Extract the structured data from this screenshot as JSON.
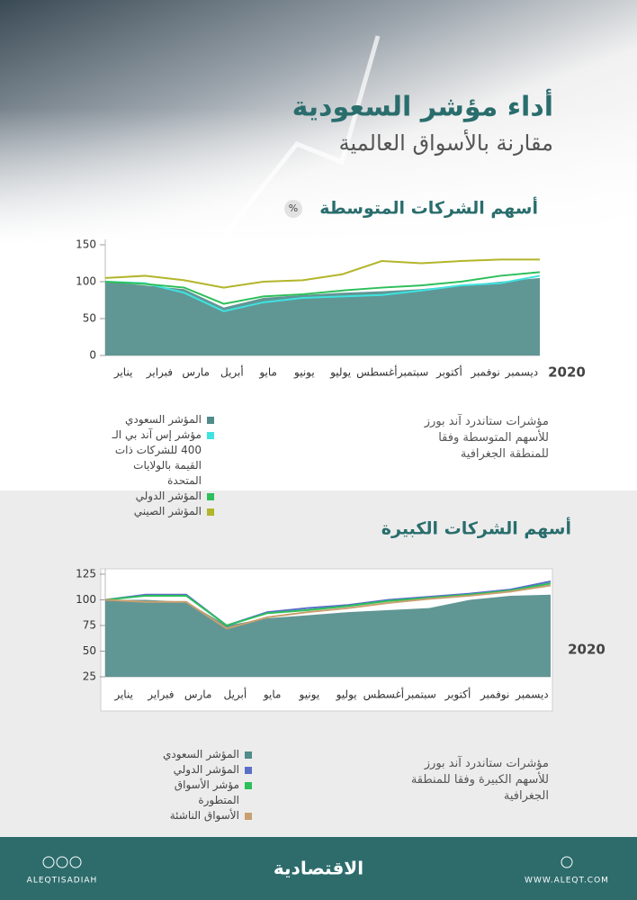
{
  "header": {
    "title": "أداء مؤشر السعودية",
    "subtitle": "مقارنة بالأسواق العالمية"
  },
  "chart_data": [
    {
      "type": "line",
      "title": "أسهم الشركات المتوسطة",
      "unit": "%",
      "year_label": "2020",
      "categories": [
        "يناير",
        "فبراير",
        "مارس",
        "أبريل",
        "مايو",
        "يونيو",
        "يوليو",
        "أغسطس",
        "سبتمبر",
        "أكتوبر",
        "نوفمبر",
        "ديسمبر"
      ],
      "ylim": [
        0,
        150
      ],
      "yticks": [
        0,
        50,
        100,
        150
      ],
      "series": [
        {
          "name": "المؤشر السعودي",
          "color": "#4f8c8a",
          "style": "area",
          "values": [
            100,
            95,
            90,
            65,
            78,
            82,
            85,
            87,
            90,
            95,
            100,
            105
          ]
        },
        {
          "name": "مؤشر إس آند بي الـ 400 للشركات ذات القيمة بالولايات المتحدة",
          "color": "#3fe3e0",
          "style": "line",
          "values": [
            100,
            98,
            85,
            60,
            72,
            78,
            80,
            82,
            88,
            95,
            98,
            108
          ]
        },
        {
          "name": "المؤشر الدولي",
          "color": "#2dbf5a",
          "style": "line",
          "values": [
            100,
            97,
            92,
            70,
            80,
            83,
            88,
            92,
            95,
            100,
            108,
            113
          ]
        },
        {
          "name": "المؤشر الصيني",
          "color": "#b3b52a",
          "style": "line",
          "values": [
            105,
            108,
            102,
            92,
            100,
            102,
            110,
            128,
            125,
            128,
            130,
            130
          ]
        }
      ],
      "caption": "مؤشرات ستاندرد آند بورز للأسهم المتوسطة وفقا للمنطقة الجغرافية"
    },
    {
      "type": "line",
      "title": "أسهم الشركات الكبيرة",
      "year_label": "2020",
      "categories": [
        "يناير",
        "فبراير",
        "مارس",
        "أبريل",
        "مايو",
        "يونيو",
        "يوليو",
        "أغسطس",
        "سبتمبر",
        "أكتوبر",
        "نوفمبر",
        "ديسمبر"
      ],
      "ylim": [
        25,
        125
      ],
      "yticks": [
        25,
        50,
        75,
        100,
        125
      ],
      "series": [
        {
          "name": "المؤشر السعودي",
          "color": "#4f8c8a",
          "style": "area",
          "values": [
            100,
            100,
            98,
            75,
            82,
            85,
            88,
            90,
            92,
            100,
            104,
            105
          ]
        },
        {
          "name": "المؤشر الدولي",
          "color": "#5a6fc8",
          "style": "line",
          "values": [
            100,
            105,
            105,
            75,
            88,
            92,
            95,
            100,
            103,
            106,
            110,
            118
          ]
        },
        {
          "name": "مؤشر الأسواق المتطورة",
          "color": "#2dbf5a",
          "style": "line",
          "values": [
            100,
            104,
            104,
            75,
            87,
            90,
            94,
            99,
            102,
            105,
            109,
            116
          ]
        },
        {
          "name": "الأسواق الناشئة",
          "color": "#c8a070",
          "style": "line",
          "values": [
            100,
            98,
            98,
            72,
            83,
            88,
            92,
            97,
            101,
            104,
            108,
            114
          ]
        }
      ],
      "caption": "مؤشرات ستاندرد آند بورز للأسهم الكبيرة وفقا للمنطقة الجغرافية"
    }
  ],
  "footer": {
    "handle": "ALEQTISADIAH",
    "logo": "الاقتصادية",
    "website": "WWW.ALEQT.COM"
  }
}
